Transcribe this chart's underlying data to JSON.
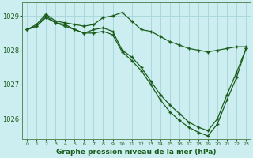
{
  "xlabel": "Graphe pression niveau de la mer (hPa)",
  "background_color": "#cceef0",
  "grid_color": "#aad8dc",
  "line_color": "#1a5c1a",
  "marker": "+",
  "ylim": [
    1025.4,
    1029.4
  ],
  "xlim": [
    -0.5,
    23.5
  ],
  "yticks": [
    1026,
    1027,
    1028,
    1029
  ],
  "xticks": [
    0,
    1,
    2,
    3,
    4,
    5,
    6,
    7,
    8,
    9,
    10,
    11,
    12,
    13,
    14,
    15,
    16,
    17,
    18,
    19,
    20,
    21,
    22,
    23
  ],
  "series": [
    [
      1028.6,
      1028.75,
      1029.05,
      1028.85,
      1028.8,
      1028.75,
      1028.7,
      1028.75,
      1028.95,
      1029.0,
      1029.1,
      1028.85,
      1028.6,
      1028.55,
      1028.4,
      1028.25,
      1028.15,
      1028.05,
      1028.0,
      1027.95,
      1028.0,
      1028.05,
      1028.1,
      1028.1
    ],
    [
      1028.6,
      1028.7,
      1029.0,
      1028.8,
      1028.75,
      1028.6,
      1028.5,
      1028.6,
      1028.65,
      1028.55,
      1028.0,
      1027.8,
      1027.5,
      1027.1,
      1026.7,
      1026.4,
      1026.15,
      1025.9,
      1025.75,
      1025.65,
      1026.0,
      1026.7,
      1027.35,
      1028.05
    ],
    [
      1028.6,
      1028.7,
      1028.95,
      1028.8,
      1028.7,
      1028.6,
      1028.5,
      1028.5,
      1028.55,
      1028.45,
      1027.95,
      1027.7,
      1027.4,
      1027.0,
      1026.55,
      1026.2,
      1025.95,
      1025.75,
      1025.6,
      1025.5,
      1025.85,
      1026.55,
      1027.2,
      1028.05
    ]
  ]
}
